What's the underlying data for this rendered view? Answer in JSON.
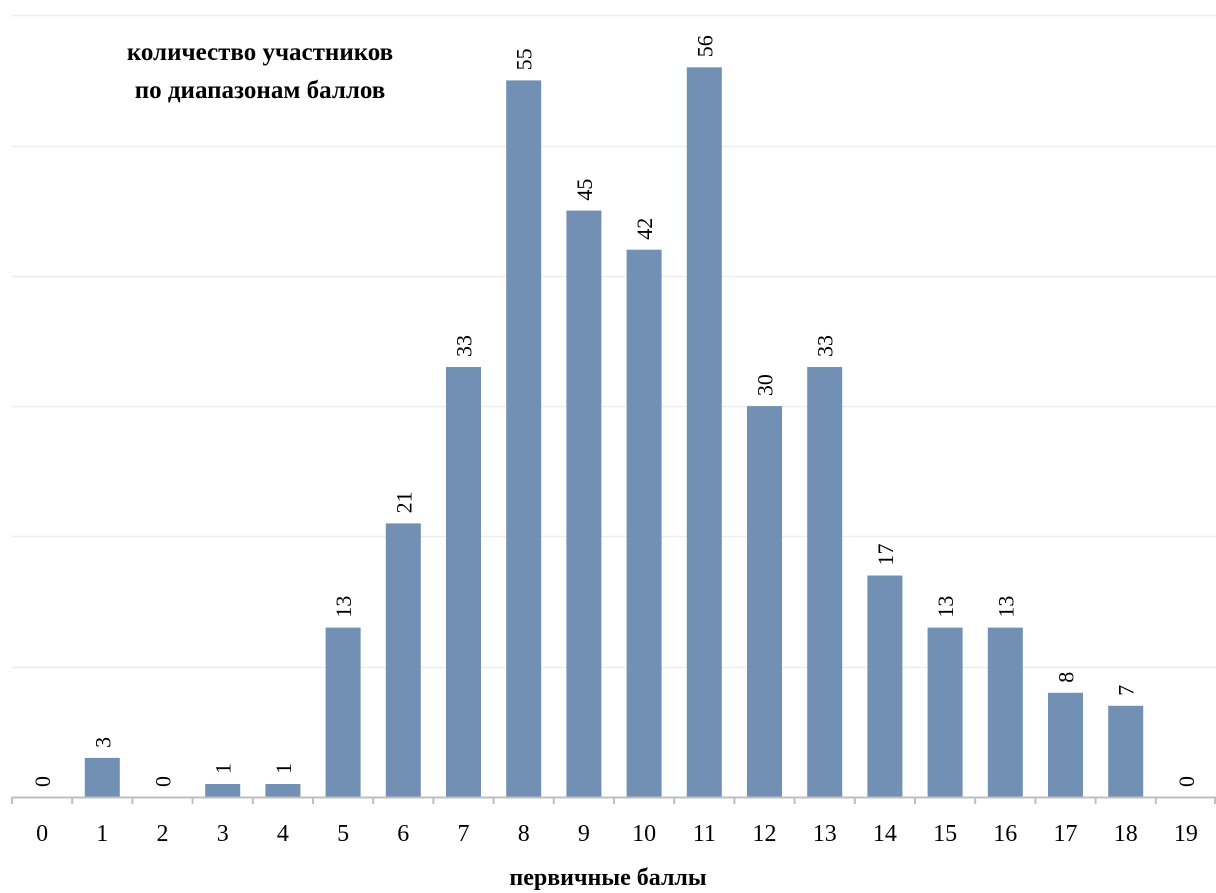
{
  "chart_data": {
    "type": "bar",
    "title_lines": [
      "количество участников",
      "по диапазонам баллов"
    ],
    "xlabel": "первичные баллы",
    "ylabel": "",
    "categories": [
      "0",
      "1",
      "2",
      "3",
      "4",
      "5",
      "6",
      "7",
      "8",
      "9",
      "10",
      "11",
      "12",
      "13",
      "14",
      "15",
      "16",
      "17",
      "18",
      "19"
    ],
    "values": [
      0,
      3,
      0,
      1,
      1,
      13,
      21,
      33,
      55,
      45,
      42,
      56,
      30,
      33,
      17,
      13,
      13,
      8,
      7,
      0
    ],
    "ylim": [
      0,
      60
    ],
    "y_gridlines": [
      10,
      20,
      30,
      40,
      50,
      60
    ],
    "grid": true,
    "legend": "none",
    "data_labels": true,
    "data_label_rotation": "vertical",
    "bar_color": "#7190b4",
    "grid_color": "#eeeeee",
    "axis_color": "#bfbfbf"
  }
}
